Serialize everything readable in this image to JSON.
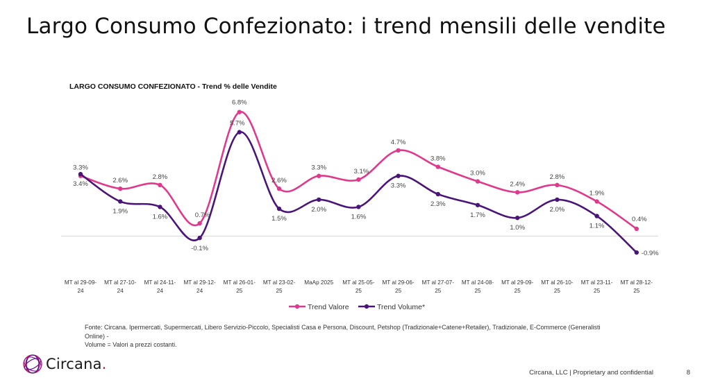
{
  "slide": {
    "title": "Largo Consumo Confezionato: i trend mensili delle vendite",
    "source_line1": "Fonte: Circana. Ipermercati, Supermercati, Libero Servizio-Piccolo, Specialisti Casa e Persona, Discount, Petshop (Tradizionale+Catene+Retailer), Tradizionale, E-Commerce (Generalisti Online) -",
    "source_line2": "Volume = Valori a prezzi costanti.",
    "brand": "Circana",
    "brand_dot": ".",
    "footer": "Circana, LLC | Proprietary and confidential",
    "page_number": "8"
  },
  "colors": {
    "valore": "#e0398b",
    "volume": "#4a1578"
  },
  "chart_data": {
    "type": "line",
    "title": "LARGO CONSUMO CONFEZIONATO - Trend % delle Vendite",
    "categories": [
      [
        "MT al 29-09-",
        "24"
      ],
      [
        "MT al 27-10-",
        "24"
      ],
      [
        "MT al 24-11-",
        "24"
      ],
      [
        "MT al 29-12-",
        "24"
      ],
      [
        "MT al 26-01-",
        "25"
      ],
      [
        "MT al 23-02-",
        "25"
      ],
      [
        "MaAp 2025",
        ""
      ],
      [
        "MT al 25-05-",
        "25"
      ],
      [
        "MT al 29-06-",
        "25"
      ],
      [
        "MT al 27-07-",
        "25"
      ],
      [
        "MT al 24-08-",
        "25"
      ],
      [
        "MT al 29-09-",
        "25"
      ],
      [
        "MT al 26-10-",
        "25"
      ],
      [
        "MT al 23-11-",
        "25"
      ],
      [
        "MT al 28-12-",
        "25"
      ]
    ],
    "series": [
      {
        "name": "Trend Valore",
        "values": [
          3.3,
          2.6,
          2.8,
          0.7,
          6.8,
          2.6,
          3.3,
          3.1,
          4.7,
          3.8,
          3.0,
          2.4,
          2.8,
          1.9,
          0.4
        ],
        "labels": [
          "3.3%",
          "2.6%",
          "2.8%",
          "0.7%",
          "6.8%",
          "2.6%",
          "3.3%",
          "3.1%",
          "4.7%",
          "3.8%",
          "3.0%",
          "2.4%",
          "2.8%",
          "1.9%",
          "0.4%"
        ]
      },
      {
        "name": "Trend Volume*",
        "values": [
          3.4,
          1.9,
          1.6,
          -0.1,
          5.7,
          1.5,
          2.0,
          1.6,
          3.3,
          2.3,
          1.7,
          1.0,
          2.0,
          1.1,
          -0.9
        ],
        "labels": [
          "3.4%",
          "1.9%",
          "1.6%",
          "-0.1%",
          "5.7%",
          "1.5%",
          "2.0%",
          "1.6%",
          "3.3%",
          "2.3%",
          "1.7%",
          "1.0%",
          "2.0%",
          "1.1%",
          "-0.9%"
        ]
      }
    ],
    "ylim": [
      -1.0,
      7.5
    ],
    "grid": false,
    "legend": "bottom-center"
  }
}
